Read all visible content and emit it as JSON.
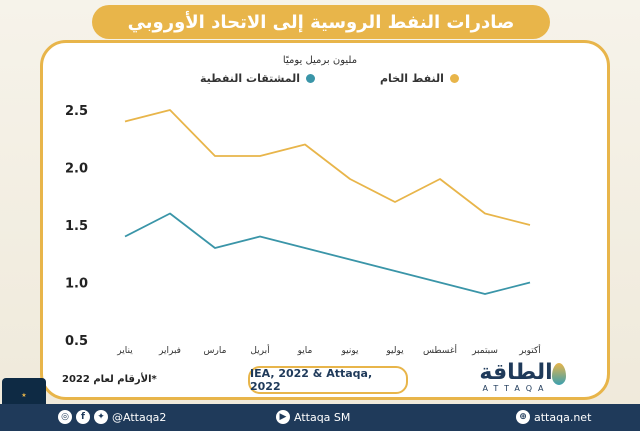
{
  "header": {
    "title": "صادرات النفط الروسية إلى الاتحاد الأوروبي"
  },
  "chart_data": {
    "type": "line",
    "ylabel": "مليون برميل يوميًا",
    "ylim": [
      0.5,
      2.5
    ],
    "yticks": [
      "0.5",
      "1.0",
      "1.5",
      "2.0",
      "2.5"
    ],
    "categories": [
      "يناير",
      "فبراير",
      "مارس",
      "أبريل",
      "مايو",
      "يونيو",
      "يوليو",
      "أغسطس",
      "سبتمبر",
      "أكتوبر"
    ],
    "series": [
      {
        "name": "النفط الخام",
        "color": "#e8b54a",
        "values": [
          2.4,
          2.5,
          2.1,
          2.1,
          2.2,
          1.9,
          1.7,
          1.9,
          1.6,
          1.5
        ]
      },
      {
        "name": "المشتقات النفطية",
        "color": "#3a95a8",
        "values": [
          1.4,
          1.6,
          1.3,
          1.4,
          1.3,
          1.2,
          1.1,
          1.0,
          0.9,
          1.0
        ]
      }
    ],
    "grid": false,
    "legend": "top"
  },
  "footnote": "*الأرقام لعام 2022",
  "source": "IEA, 2022 & Attaqa, 2022",
  "logo": {
    "arabic": "الطاقة",
    "latin": "ATTAQA"
  },
  "footer": {
    "social_handle": "@Attaqa2",
    "youtube": "Attaqa SM",
    "website": "attaqa.net"
  }
}
